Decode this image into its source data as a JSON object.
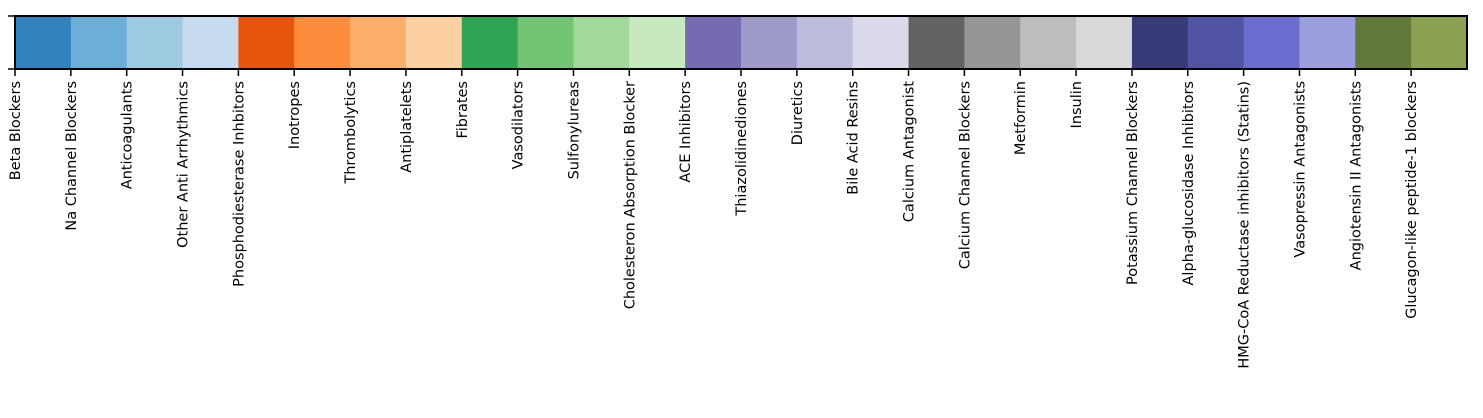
{
  "chart_data": {
    "type": "heatmap",
    "title": "",
    "xlabel": "",
    "ylabel": "",
    "categories": [
      "Beta Blockers",
      "Na Channel Blockers",
      "Anticoagulants",
      "Other Anti Arrhythmics",
      "Phosphodiesterase Inhbitors",
      "Inotropes",
      "Thrombolytics",
      "Antiplatelets",
      "Fibrates",
      "Vasodilators",
      "Sulfonylureas",
      "Cholesteron Absorption Blocker",
      "ACE Inhibitors",
      "Thiazolidinediones",
      "Diuretics",
      "Bile Acid Resins",
      "Calcium Antagonist",
      "Calcium Channel Blockers",
      "Metformin",
      "Insulin",
      "Potassium Channel Blockers",
      "Alpha-glucosidase Inhibitors",
      "HMG-CoA Reductase inhibitors (Statins)",
      "Vasopressin Antagonists",
      "Angiotensin II Antagonists",
      "Glucagon-like peptide-1 blockers"
    ],
    "colors": [
      "#3182bd",
      "#6baed6",
      "#9ecae1",
      "#c6dbef",
      "#e6550d",
      "#fd8d3c",
      "#fdae6b",
      "#fdd0a2",
      "#31a354",
      "#74c476",
      "#a1d99b",
      "#c7e9c0",
      "#756bb1",
      "#9e9ac8",
      "#bcbddc",
      "#dadaeb",
      "#636363",
      "#969696",
      "#bdbdbd",
      "#d9d9d9",
      "#393b79",
      "#5254a3",
      "#6b6ecf",
      "#9c9ede",
      "#637939",
      "#8ca252"
    ],
    "grid": false,
    "legend": "none"
  }
}
